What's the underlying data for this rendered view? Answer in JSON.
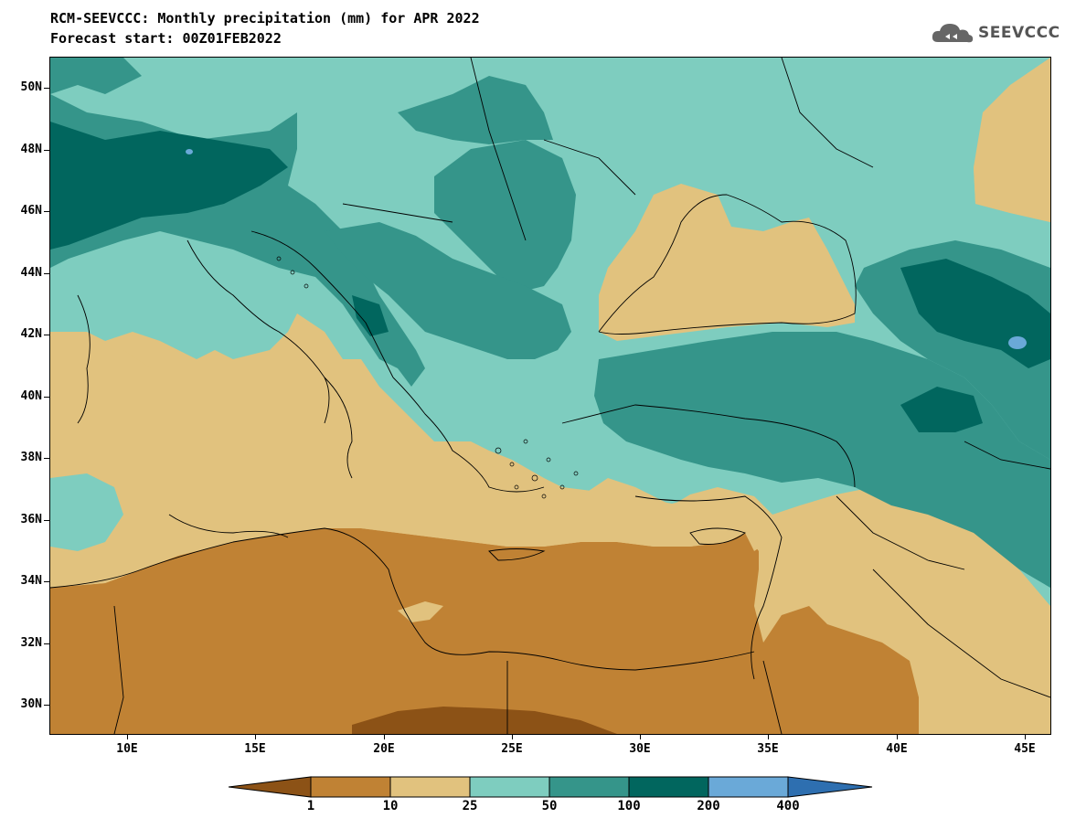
{
  "header": {
    "title_line1": "RCM-SEEVCCC: Monthly precipitation (mm) for APR 2022",
    "title_line2": "Forecast start: 00Z01FEB2022",
    "logo_text": "SEEVCCC"
  },
  "axes": {
    "lat_labels": [
      "50N",
      "48N",
      "46N",
      "44N",
      "42N",
      "40N",
      "38N",
      "36N",
      "34N",
      "32N",
      "30N"
    ],
    "lon_labels": [
      "10E",
      "15E",
      "20E",
      "25E",
      "30E",
      "35E",
      "40E",
      "45E"
    ]
  },
  "colorbar": {
    "labels": [
      "1",
      "10",
      "25",
      "50",
      "100",
      "200",
      "400"
    ],
    "colors": [
      "#8c5216",
      "#c08234",
      "#e1c27e",
      "#7ecdbf",
      "#35958a",
      "#01665e",
      "#6aa9d8",
      "#2e6fb0"
    ]
  },
  "map": {
    "lat_range": [
      29,
      51
    ],
    "lon_range": [
      7,
      46
    ],
    "palette": {
      "lt1": "#8c5216",
      "r1_10": "#c08234",
      "r10_25": "#e1c27e",
      "r25_50": "#7ecdbf",
      "r50_100": "#35958a",
      "r100_200": "#01665e",
      "r200_400": "#6aa9d8"
    }
  }
}
